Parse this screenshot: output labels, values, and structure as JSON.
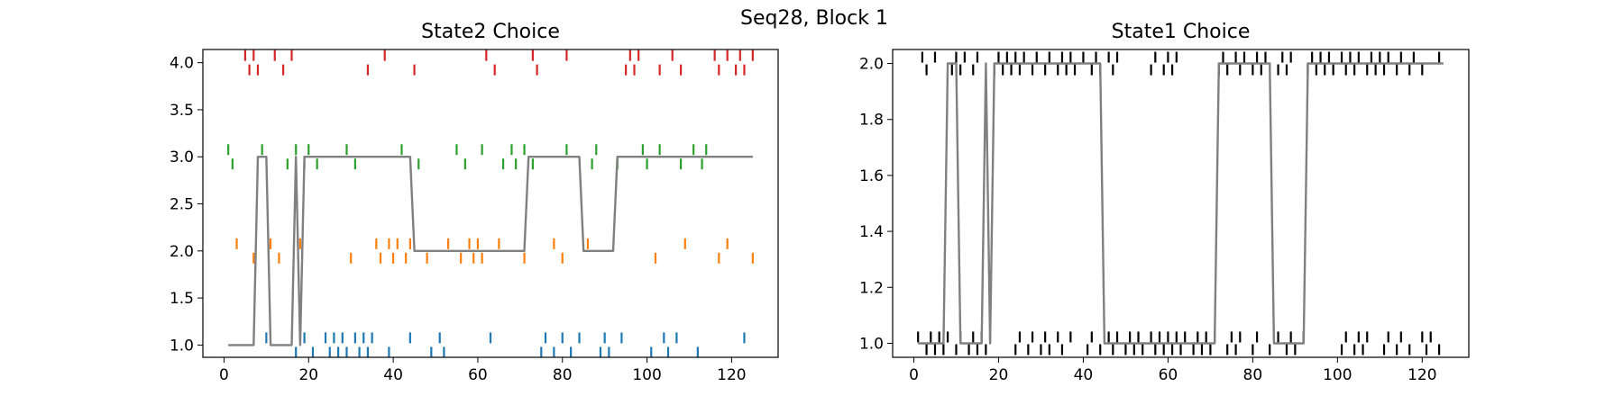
{
  "figure": {
    "suptitle": "Seq28, Block 1"
  },
  "colors": {
    "line": "#808080",
    "state2_markers": [
      "#1f77b4",
      "#ff7f0e",
      "#2ca02c",
      "#d62728"
    ],
    "state1_markers": "#000000"
  },
  "chart_data": [
    {
      "type": "line",
      "title": "State2 Choice",
      "xlabel": "",
      "ylabel": "",
      "xlim": [
        -5,
        131
      ],
      "ylim": [
        0.87,
        4.14
      ],
      "xticks": [
        0,
        20,
        40,
        60,
        80,
        100,
        120
      ],
      "yticks": [
        1.0,
        1.5,
        2.0,
        2.5,
        3.0,
        3.5,
        4.0
      ],
      "ytick_labels": [
        "1.0",
        "1.5",
        "2.0",
        "2.5",
        "3.0",
        "3.5",
        "4.0"
      ],
      "line": {
        "x": [
          1,
          7,
          8,
          9,
          10,
          11,
          15,
          16,
          17,
          18,
          19,
          20,
          44,
          45,
          71,
          72,
          84,
          85,
          92,
          93,
          125
        ],
        "y": [
          1,
          1,
          3,
          3,
          3,
          1,
          1,
          1,
          3,
          1,
          3,
          3,
          3,
          2,
          2,
          3,
          3,
          2,
          2,
          3,
          3
        ]
      },
      "markers": [
        {
          "state": 1,
          "x": [
            10,
            17,
            19,
            21,
            24,
            25,
            26,
            27,
            28,
            29,
            31,
            32,
            33,
            34,
            35,
            39,
            44,
            49,
            51,
            52,
            63,
            75,
            76,
            78,
            80,
            82,
            84,
            89,
            90,
            91,
            94,
            101,
            104,
            105,
            107,
            112,
            123
          ]
        },
        {
          "state": 2,
          "x": [
            3,
            7,
            11,
            13,
            18,
            30,
            36,
            37,
            39,
            40,
            41,
            43,
            44,
            48,
            53,
            56,
            58,
            59,
            60,
            61,
            65,
            71,
            78,
            80,
            86,
            102,
            109,
            117,
            119,
            125
          ]
        },
        {
          "state": 3,
          "x": [
            1,
            2,
            9,
            15,
            17,
            19,
            20,
            22,
            29,
            31,
            42,
            46,
            55,
            57,
            61,
            66,
            68,
            69,
            71,
            73,
            81,
            87,
            88,
            93,
            99,
            100,
            103,
            108,
            111,
            113,
            114
          ]
        },
        {
          "state": 4,
          "x": [
            5,
            6,
            7,
            8,
            12,
            14,
            16,
            34,
            38,
            45,
            62,
            64,
            73,
            74,
            81,
            95,
            96,
            97,
            98,
            103,
            106,
            108,
            116,
            117,
            119,
            121,
            122,
            123,
            125
          ]
        }
      ]
    },
    {
      "type": "line",
      "title": "State1 Choice",
      "xlabel": "",
      "ylabel": "",
      "xlim": [
        -5,
        131
      ],
      "ylim": [
        0.95,
        2.05
      ],
      "xticks": [
        0,
        20,
        40,
        60,
        80,
        100,
        120
      ],
      "yticks": [
        1.0,
        1.2,
        1.4,
        1.6,
        1.8,
        2.0
      ],
      "ytick_labels": [
        "1.0",
        "1.2",
        "1.4",
        "1.6",
        "1.8",
        "2.0"
      ],
      "line": {
        "x": [
          1,
          7,
          8,
          10,
          11,
          16,
          17,
          18,
          19,
          44,
          45,
          71,
          72,
          84,
          85,
          92,
          93,
          125
        ],
        "y": [
          1,
          1,
          2,
          2,
          1,
          1,
          2,
          1,
          2,
          2,
          1,
          1,
          2,
          2,
          1,
          1,
          2,
          2
        ]
      },
      "markers": [
        {
          "state": 1,
          "x": [
            1,
            3,
            4,
            5,
            6,
            7,
            8,
            10,
            11,
            13,
            14,
            15,
            16,
            17,
            18,
            24,
            25,
            27,
            28,
            30,
            31,
            32,
            34,
            35,
            37,
            41,
            42,
            44,
            46,
            47,
            48,
            50,
            51,
            52,
            53,
            54,
            56,
            57,
            58,
            59,
            60,
            61,
            62,
            63,
            64,
            66,
            67,
            68,
            69,
            70,
            71,
            74,
            75,
            76,
            77,
            80,
            81,
            84,
            86,
            88,
            89,
            90,
            92,
            101,
            102,
            104,
            105,
            106,
            107,
            111,
            112,
            114,
            115,
            117,
            120,
            121,
            122,
            124
          ]
        },
        {
          "state": 2,
          "x": [
            2,
            3,
            5,
            9,
            10,
            11,
            12,
            14,
            15,
            19,
            20,
            21,
            22,
            23,
            24,
            25,
            26,
            28,
            29,
            31,
            32,
            34,
            35,
            36,
            37,
            38,
            40,
            42,
            43,
            44,
            46,
            47,
            48,
            56,
            57,
            59,
            60,
            61,
            62,
            72,
            73,
            74,
            76,
            77,
            78,
            80,
            81,
            82,
            83,
            86,
            87,
            88,
            89,
            93,
            94,
            95,
            96,
            97,
            98,
            99,
            101,
            102,
            103,
            104,
            105,
            107,
            108,
            109,
            110,
            111,
            112,
            114,
            115,
            117,
            118,
            120,
            124
          ]
        }
      ]
    }
  ]
}
